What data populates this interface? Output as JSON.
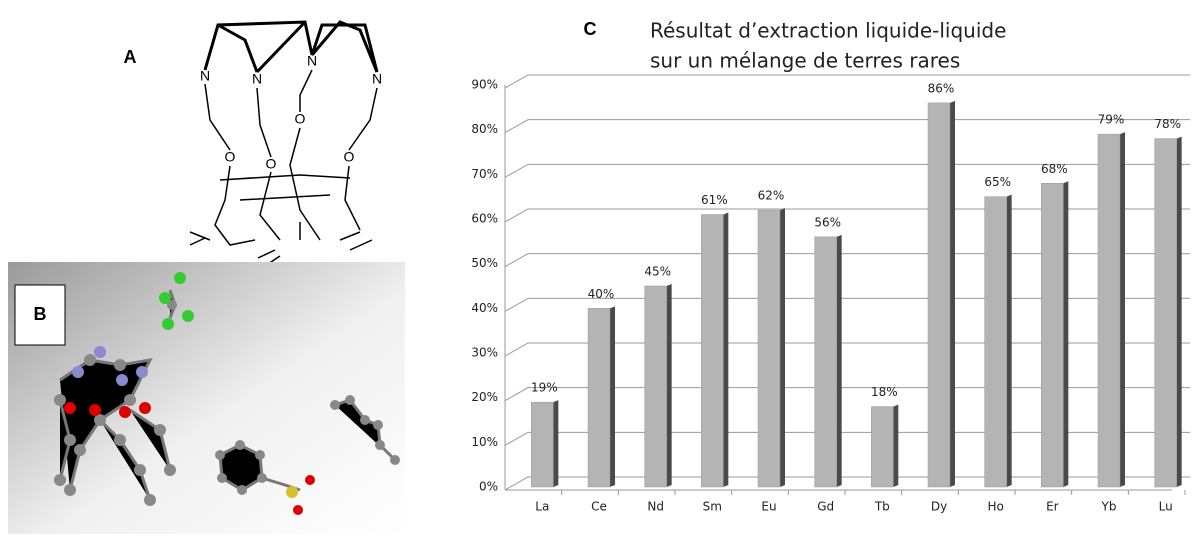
{
  "panels": {
    "a": "A",
    "b": "B"
  },
  "structure_a": {
    "atoms": [
      "N",
      "N",
      "N",
      "N",
      "O",
      "O",
      "O",
      "O"
    ]
  },
  "chart_data": {
    "type": "bar",
    "panel_label": "C",
    "title": [
      "Résultat d’extraction liquide-liquide",
      "sur un mélange de terres rares"
    ],
    "categories": [
      "La",
      "Ce",
      "Nd",
      "Sm",
      "Eu",
      "Gd",
      "Tb",
      "Dy",
      "Ho",
      "Er",
      "Yb",
      "Lu"
    ],
    "values": [
      19,
      40,
      45,
      61,
      62,
      56,
      18,
      86,
      65,
      68,
      79,
      78
    ],
    "value_labels": [
      "19%",
      "40%",
      "45%",
      "61%",
      "62%",
      "56%",
      "18%",
      "86%",
      "65%",
      "68%",
      "79%",
      "78%"
    ],
    "color": "#b4b4b4",
    "ylim": [
      0,
      90
    ],
    "yticks": [
      {
        "value": 0,
        "label": "0%"
      },
      {
        "value": 10,
        "label": "10%"
      },
      {
        "value": 20,
        "label": "20%"
      },
      {
        "value": 30,
        "label": "30%"
      },
      {
        "value": 40,
        "label": "40%"
      },
      {
        "value": 50,
        "label": "50%"
      },
      {
        "value": 60,
        "label": "60%"
      },
      {
        "value": 70,
        "label": "70%"
      },
      {
        "value": 80,
        "label": "80%"
      },
      {
        "value": 90,
        "label": "90%"
      }
    ],
    "grid": true
  }
}
